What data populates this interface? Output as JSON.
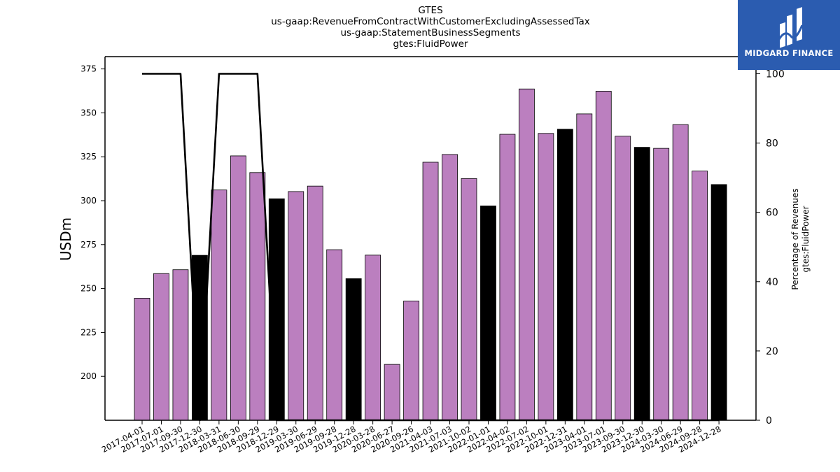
{
  "brand": {
    "name": "MIDGARD FINANCE",
    "logo_icon": "midgard-logo-icon",
    "background_color": "#2b5cb0"
  },
  "colors": {
    "bar_default": "#bb7fbf",
    "bar_highlight": "#000000",
    "line": "#000000"
  },
  "chart_data": {
    "type": "bar",
    "title_lines": [
      "GTES",
      "us-gaap:RevenueFromContractWithCustomerExcludingAssessedTax",
      "us-gaap:StatementBusinessSegments",
      "gtes:FluidPower"
    ],
    "ylabel": "USDm",
    "y2label_lines": [
      "Percentage of Revenues",
      "gtes:FluidPower"
    ],
    "ylim": [
      175,
      382
    ],
    "y2lim": [
      0,
      100
    ],
    "yticks": [
      200,
      225,
      250,
      275,
      300,
      325,
      350,
      375
    ],
    "y2ticks": [
      0,
      20,
      40,
      60,
      80,
      100
    ],
    "categories": [
      "2017-04-01",
      "2017-07-01",
      "2017-09-30",
      "2017-12-30",
      "2018-03-31",
      "2018-06-30",
      "2018-09-29",
      "2018-12-29",
      "2019-03-30",
      "2019-06-29",
      "2019-09-28",
      "2019-12-28",
      "2020-03-28",
      "2020-06-27",
      "2020-09-26",
      "2021-04-03",
      "2021-07-03",
      "2021-10-02",
      "2022-01-01",
      "2022-04-02",
      "2022-07-02",
      "2022-10-01",
      "2022-12-31",
      "2023-04-01",
      "2023-07-01",
      "2023-09-30",
      "2023-12-30",
      "2024-03-30",
      "2024-06-29",
      "2024-09-28",
      "2024-12-28"
    ],
    "series": [
      {
        "type": "bar",
        "values": [
          244.5,
          258.5,
          260.7,
          268.9,
          306.1,
          325.5,
          316.0,
          301.1,
          305.2,
          308.3,
          272.1,
          255.6,
          269.0,
          206.8,
          242.9,
          321.9,
          326.3,
          312.6,
          297.0,
          337.8,
          363.6,
          338.3,
          340.7,
          349.4,
          362.3,
          336.7,
          330.4,
          329.8,
          343.3,
          316.9,
          309.2
        ],
        "highlight": [
          false,
          false,
          false,
          true,
          false,
          false,
          false,
          true,
          false,
          false,
          false,
          true,
          false,
          false,
          false,
          false,
          false,
          false,
          true,
          false,
          false,
          false,
          true,
          false,
          false,
          false,
          true,
          false,
          false,
          false,
          true
        ]
      },
      {
        "type": "line",
        "axis": "right",
        "values": [
          100,
          100,
          100,
          0,
          100,
          100,
          100,
          0,
          0,
          0,
          0,
          0,
          0,
          0,
          0,
          0,
          0,
          0,
          0,
          0,
          0,
          0,
          0,
          0,
          0,
          0,
          0,
          0,
          0,
          0,
          0
        ]
      }
    ]
  }
}
